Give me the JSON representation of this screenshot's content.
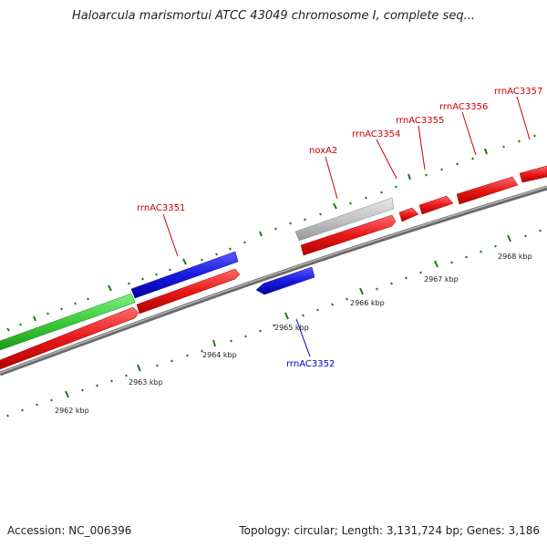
{
  "title": "Haloarcula marismortui ATCC 43049 chromosome I, complete seq...",
  "footer": {
    "accession": "Accession: NC_006396",
    "summary": "Topology: circular; Length: 3,131,724 bp; Genes: 3,186"
  },
  "scale_labels": [
    "2962 kbp",
    "2963 kbp",
    "2964 kbp",
    "2965 kbp",
    "2966 kbp",
    "2967 kbp",
    "2968 kbp"
  ],
  "gene_labels": [
    {
      "text": "rrnAC3351",
      "color": "#cc0000"
    },
    {
      "text": "noxA2",
      "color": "#cc0000"
    },
    {
      "text": "rrnAC3354",
      "color": "#cc0000"
    },
    {
      "text": "rrnAC3355",
      "color": "#cc0000"
    },
    {
      "text": "rrnAC3356",
      "color": "#cc0000"
    },
    {
      "text": "rrnAC3357",
      "color": "#cc0000"
    },
    {
      "text": "rrnAC3352",
      "color": "#0000cc"
    }
  ],
  "colors": {
    "forward_gene": "#e01010",
    "reverse_gene": "#1a1ad8",
    "rna_gene": "#3ccc3c",
    "other_feature": "#c0c0c0",
    "backbone": "#808080",
    "tick": "#1a7a1a"
  }
}
